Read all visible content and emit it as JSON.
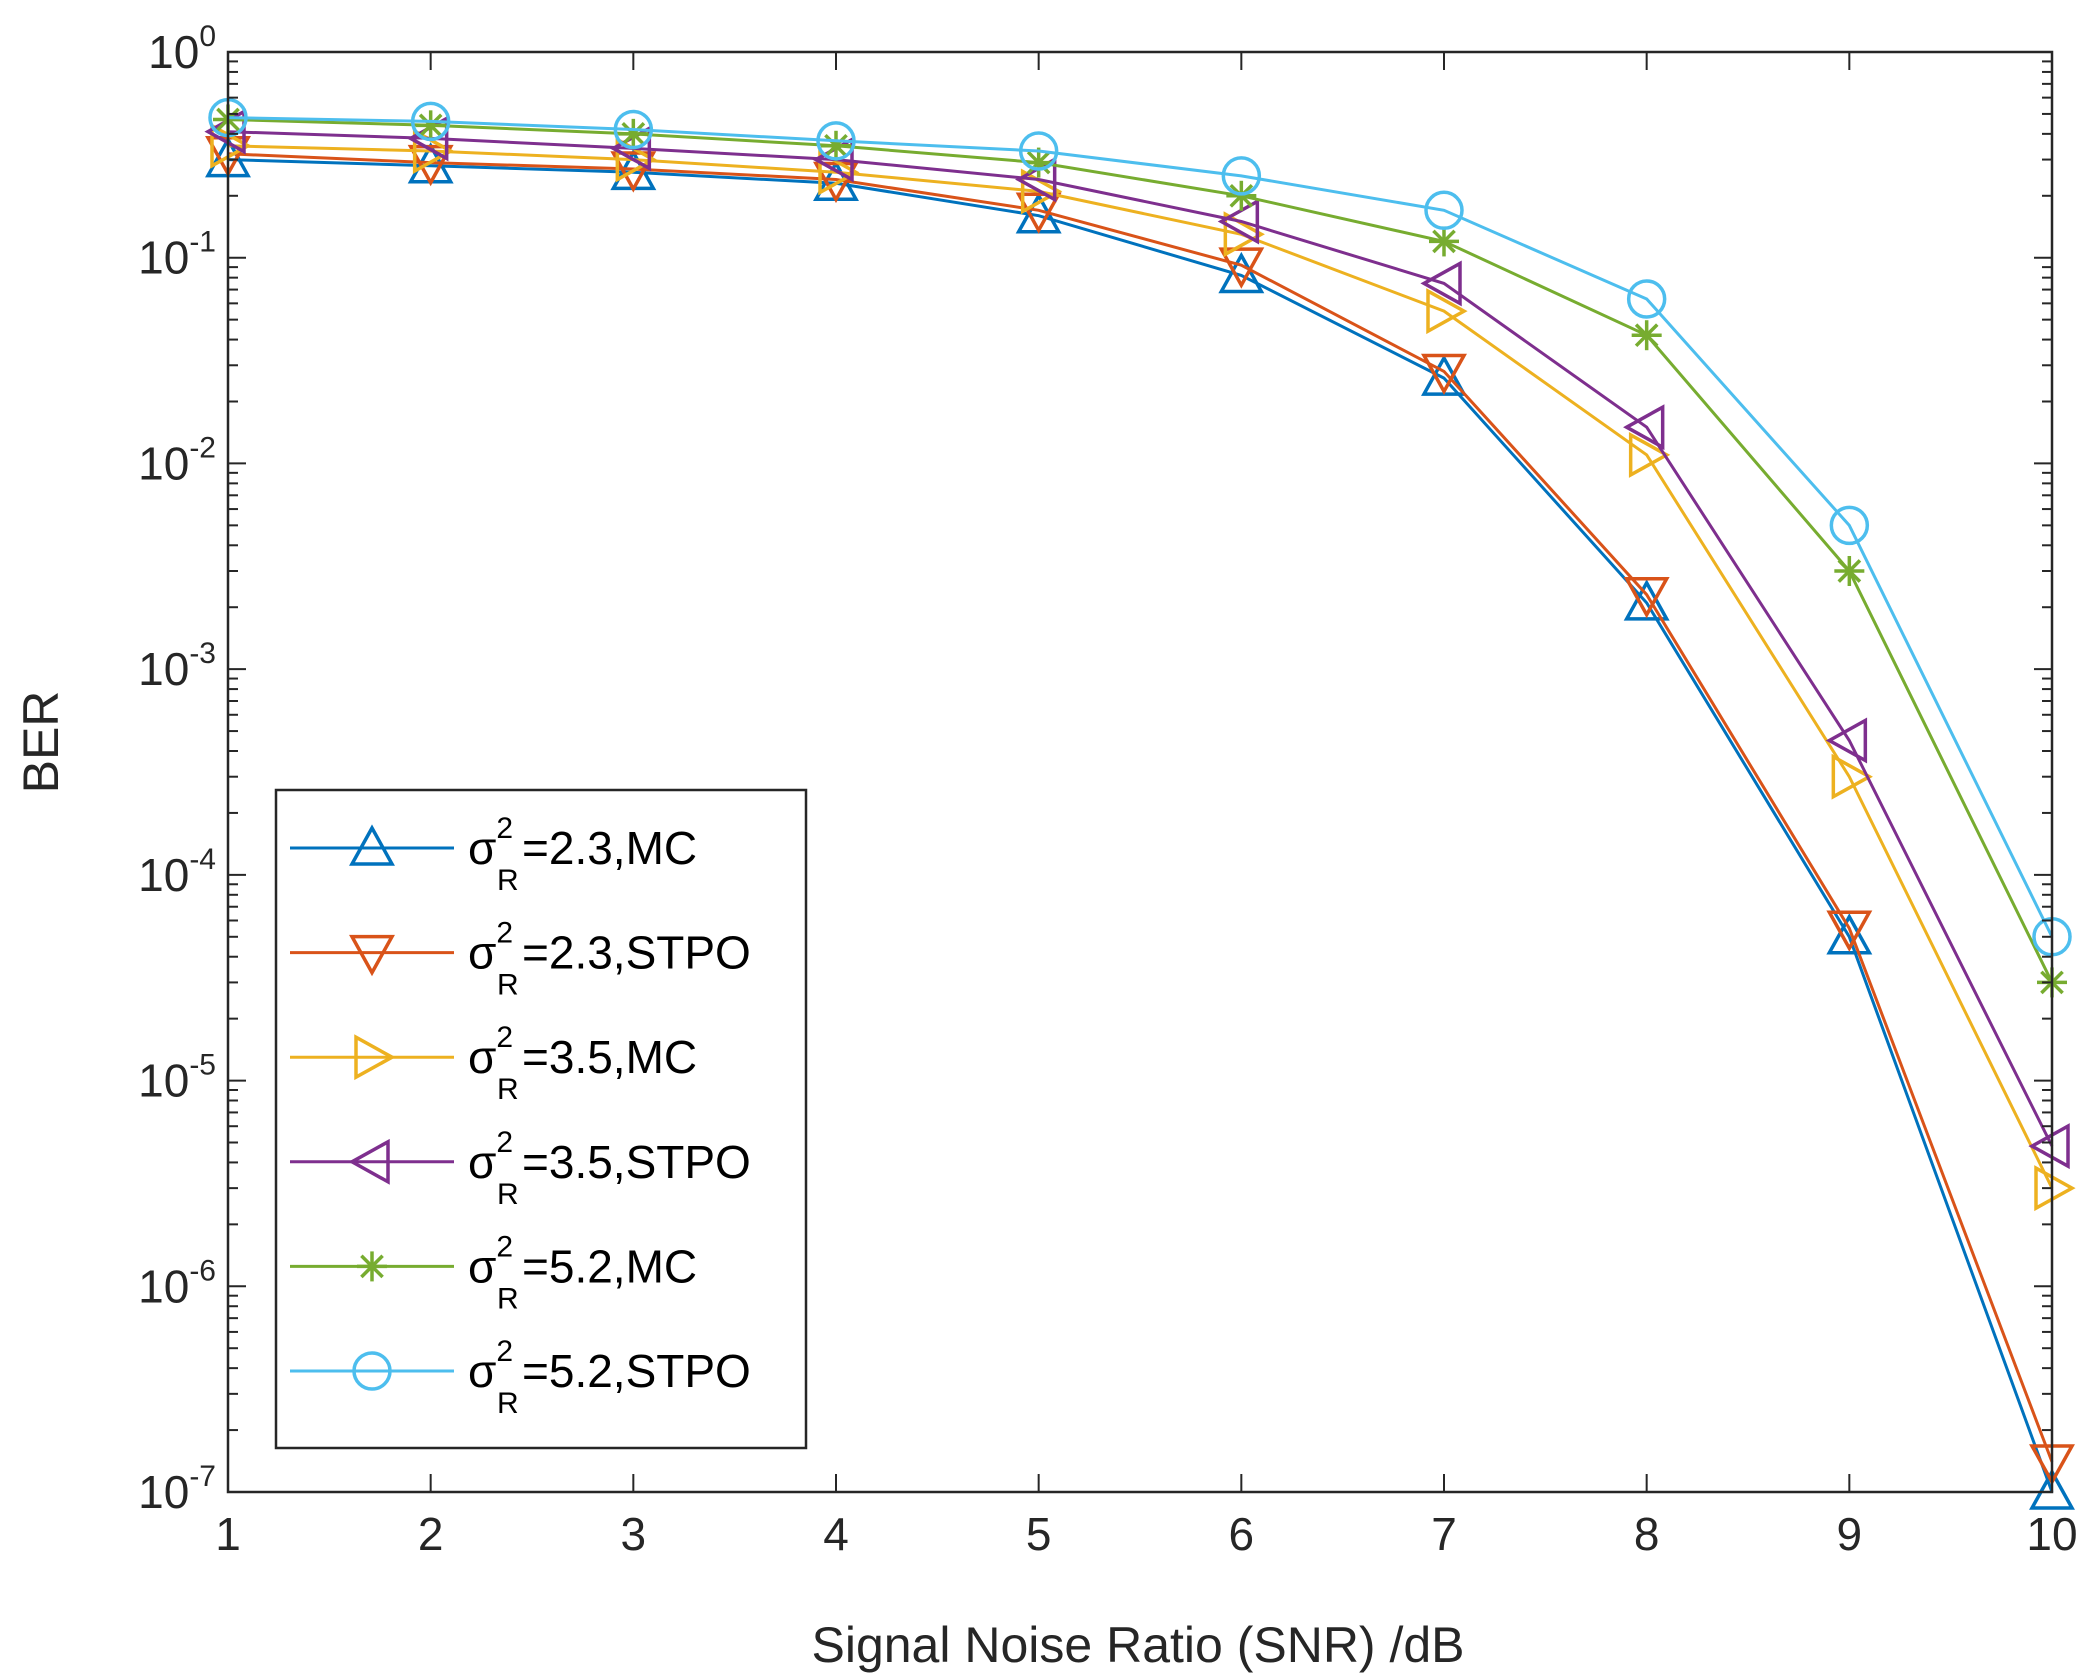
{
  "chart_data": {
    "type": "line",
    "title": "",
    "xlabel": "Signal Noise Ratio (SNR) /dB",
    "ylabel": "BER",
    "x": [
      1,
      2,
      3,
      4,
      5,
      6,
      7,
      8,
      9,
      10
    ],
    "xlim": [
      1,
      10
    ],
    "ylim": [
      1e-07,
      1
    ],
    "yscale": "log",
    "grid": false,
    "legend_position": "lower-left",
    "x_ticks": [
      "1",
      "2",
      "3",
      "4",
      "5",
      "6",
      "7",
      "8",
      "9",
      "10"
    ],
    "y_ticks": [
      {
        "base": "10",
        "exp": "0",
        "value": 1
      },
      {
        "base": "10",
        "exp": "-1",
        "value": 0.1
      },
      {
        "base": "10",
        "exp": "-2",
        "value": 0.01
      },
      {
        "base": "10",
        "exp": "-3",
        "value": 0.001
      },
      {
        "base": "10",
        "exp": "-4",
        "value": 0.0001
      },
      {
        "base": "10",
        "exp": "-5",
        "value": 1e-05
      },
      {
        "base": "10",
        "exp": "-6",
        "value": 1e-06
      },
      {
        "base": "10",
        "exp": "-7",
        "value": 1e-07
      }
    ],
    "series": [
      {
        "name": "σR2=2.3,MC",
        "sym": "σ",
        "sup": "2",
        "sub": "R",
        "rest": "=2.3,MC",
        "color": "#0072BD",
        "marker": "triangle-up",
        "values": [
          0.3,
          0.28,
          0.26,
          0.23,
          0.16,
          0.082,
          0.026,
          0.0021,
          5e-05,
          1e-07
        ]
      },
      {
        "name": "σR2=2.3,STPO",
        "sym": "σ",
        "sup": "2",
        "sub": "R",
        "rest": "=2.3,STPO",
        "color": "#D95319",
        "marker": "triangle-down",
        "values": [
          0.32,
          0.29,
          0.27,
          0.24,
          0.17,
          0.092,
          0.028,
          0.0023,
          5.5e-05,
          1.4e-07
        ]
      },
      {
        "name": "σR2=3.5,MC",
        "sym": "σ",
        "sup": "2",
        "sub": "R",
        "rest": "=3.5,MC",
        "color": "#EDB120",
        "marker": "triangle-right",
        "values": [
          0.35,
          0.33,
          0.3,
          0.26,
          0.21,
          0.13,
          0.055,
          0.011,
          0.0003,
          3e-06
        ]
      },
      {
        "name": "σR2=3.5,STPO",
        "sym": "σ",
        "sup": "2",
        "sub": "R",
        "rest": "=3.5,STPO",
        "color": "#7E2F8E",
        "marker": "triangle-left",
        "values": [
          0.41,
          0.38,
          0.34,
          0.3,
          0.24,
          0.15,
          0.075,
          0.015,
          0.00045,
          4.8e-06
        ]
      },
      {
        "name": "σR2=5.2,MC",
        "sym": "σ",
        "sup": "2",
        "sub": "R",
        "rest": "=5.2,MC",
        "color": "#77AC30",
        "marker": "asterisk",
        "values": [
          0.47,
          0.44,
          0.4,
          0.35,
          0.29,
          0.2,
          0.12,
          0.042,
          0.003,
          3e-05
        ]
      },
      {
        "name": "σR2=5.2,STPO",
        "sym": "σ",
        "sup": "2",
        "sub": "R",
        "rest": "=5.2,STPO",
        "color": "#4DBEEE",
        "marker": "circle",
        "values": [
          0.48,
          0.46,
          0.42,
          0.37,
          0.33,
          0.25,
          0.17,
          0.063,
          0.005,
          5e-05
        ]
      }
    ]
  }
}
